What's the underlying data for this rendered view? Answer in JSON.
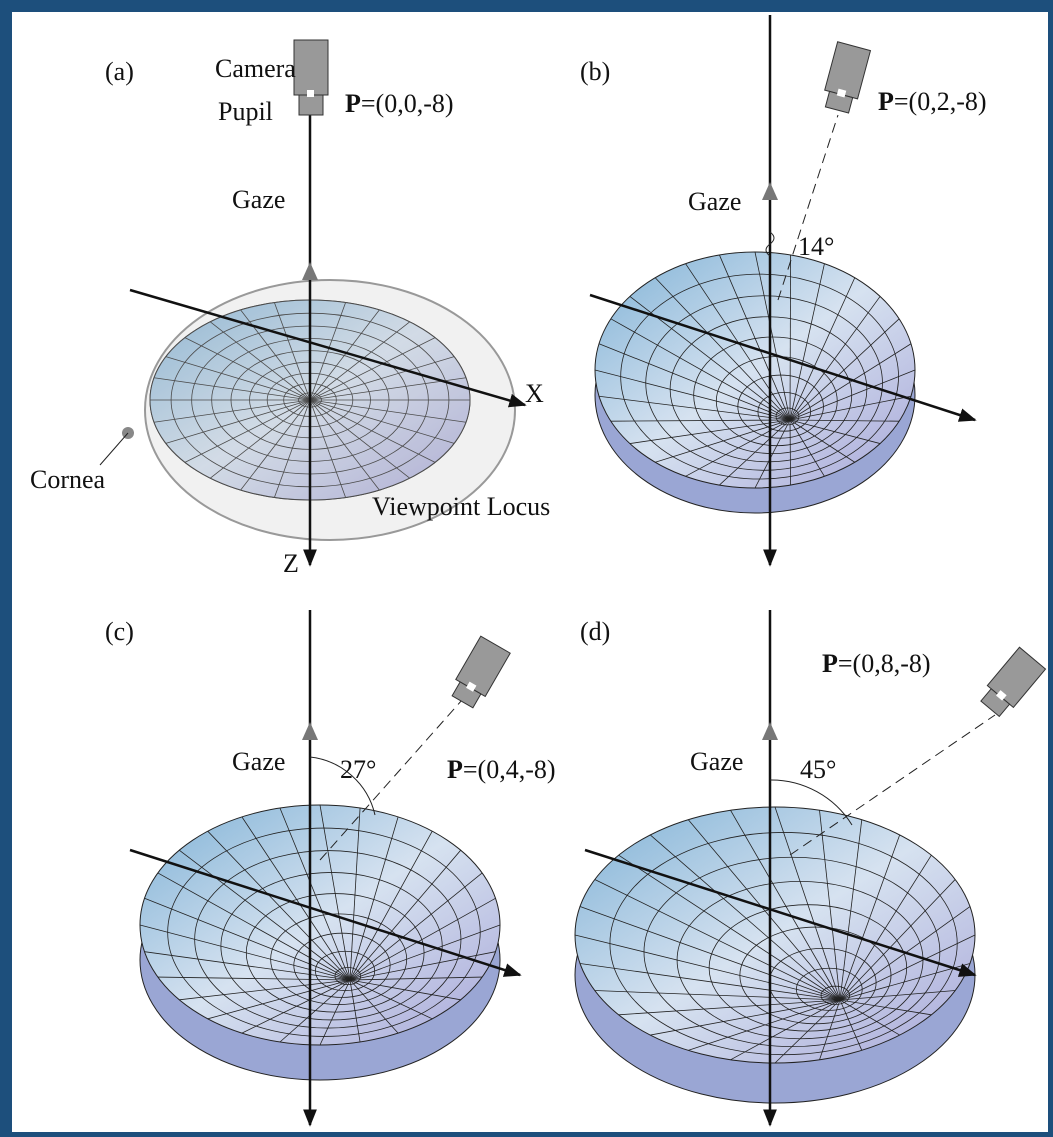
{
  "panels": [
    {
      "label": "(a)",
      "camera": "Camera",
      "pupil": "Pupil",
      "point_label": "P",
      "point_coords": "=(0,0,-8)",
      "gaze": "Gaze",
      "x_axis": "X",
      "z_axis": "Z",
      "cornea": "Cornea",
      "locus": "Viewpoint Locus"
    },
    {
      "label": "(b)",
      "point_label": "P",
      "point_coords": "=(0,2,-8)",
      "gaze": "Gaze",
      "angle": "14°"
    },
    {
      "label": "(c)",
      "point_label": "P",
      "point_coords": "=(0,4,-8)",
      "gaze": "Gaze",
      "angle": "27°"
    },
    {
      "label": "(d)",
      "point_label": "P",
      "point_coords": "=(0,8,-8)",
      "gaze": "Gaze",
      "angle": "45°"
    }
  ]
}
